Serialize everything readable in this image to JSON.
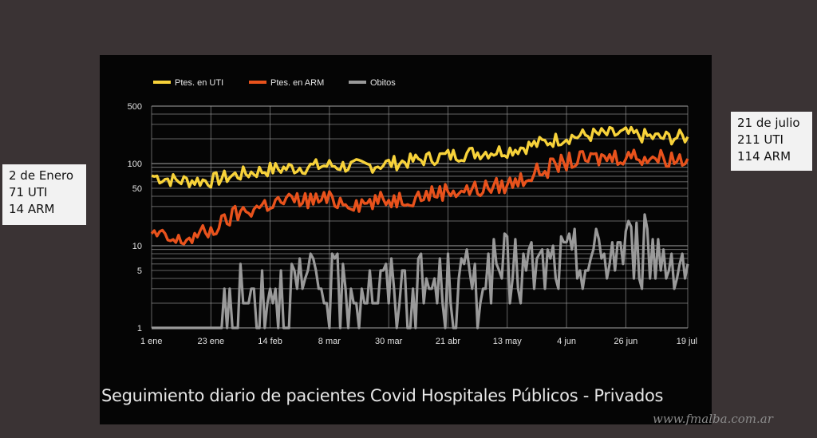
{
  "annotations": {
    "left": {
      "line1": "2 de Enero",
      "line2": "71 UTI",
      "line3": "14 ARM"
    },
    "right": {
      "line1": "21 de julio",
      "line2": "211 UTI",
      "line3": "114 ARM"
    }
  },
  "caption": "Seguimiento diario de pacientes Covid Hospitales Públicos - Privados",
  "watermark": "www.fmalba.com.ar",
  "colors": {
    "uti": "#f7d23a",
    "arm": "#e8521c",
    "obitos": "#9a9a9a",
    "background": "#050505",
    "grid": "#9a9a9a"
  },
  "chart_data": {
    "type": "line",
    "yscale": "log",
    "ylim": [
      1,
      500
    ],
    "y_ticks": [
      1,
      5,
      10,
      50,
      100,
      500
    ],
    "x_range": [
      "1 ene",
      "19 jul"
    ],
    "x_ticks": [
      "1 ene",
      "23 ene",
      "14 feb",
      "8 mar",
      "30 mar",
      "21 abr",
      "13 may",
      "4 jun",
      "26 jun",
      "19 jul"
    ],
    "legend": "top-left",
    "grid": true,
    "series": [
      {
        "name": "Ptes. en UTI",
        "color": "#f7d23a",
        "dates": [
          "1 ene",
          "10 ene",
          "23 ene",
          "1 feb",
          "14 feb",
          "25 feb",
          "8 mar",
          "20 mar",
          "30 mar",
          "10 abr",
          "21 abr",
          "1 may",
          "13 may",
          "25 may",
          "4 jun",
          "15 jun",
          "26 jun",
          "8 jul",
          "19 jul"
        ],
        "values": [
          71,
          62,
          62,
          72,
          85,
          90,
          95,
          92,
          100,
          110,
          125,
          135,
          145,
          175,
          210,
          225,
          230,
          205,
          211
        ]
      },
      {
        "name": "Ptes. en ARM",
        "color": "#e8521c",
        "dates": [
          "1 ene",
          "10 ene",
          "23 ene",
          "1 feb",
          "14 feb",
          "25 feb",
          "8 mar",
          "20 mar",
          "30 mar",
          "10 abr",
          "21 abr",
          "1 may",
          "13 may",
          "25 may",
          "4 jun",
          "15 jun",
          "26 jun",
          "8 jul",
          "19 jul"
        ],
        "values": [
          14,
          11,
          15,
          24,
          33,
          36,
          36,
          33,
          36,
          40,
          47,
          48,
          55,
          80,
          105,
          115,
          125,
          118,
          114
        ]
      },
      {
        "name": "Obitos",
        "color": "#9a9a9a",
        "dates": [
          "1 ene",
          "23 ene",
          "1 feb",
          "14 feb",
          "25 feb",
          "8 mar",
          "20 mar",
          "30 mar",
          "10 abr",
          "21 abr",
          "1 may",
          "13 may",
          "25 may",
          "4 jun",
          "15 jun",
          "26 jun",
          "8 jul",
          "19 jul"
        ],
        "values": [
          1,
          1,
          2,
          3,
          3,
          3,
          3,
          3,
          3,
          3,
          4,
          5,
          5,
          6,
          7,
          10,
          8,
          6
        ]
      }
    ]
  }
}
